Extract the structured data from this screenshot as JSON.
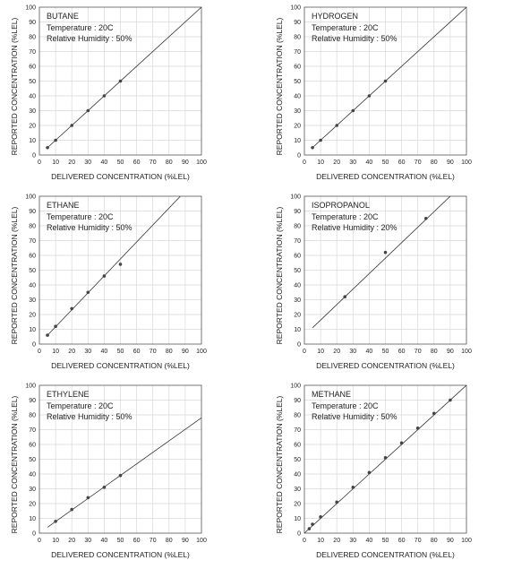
{
  "chart_data": [
    {
      "type": "scatter",
      "title": "BUTANE",
      "annotations": [
        "Temperature : 20C",
        "Relative Humidity : 50%"
      ],
      "xlabel": "DELIVERED CONCENTRATION (%LEL)",
      "ylabel": "REPORTED CONCENTRATION (%LEL)",
      "xlim": [
        0,
        100
      ],
      "ylim": [
        0,
        100
      ],
      "xticks": [
        "0",
        "10",
        "20",
        "30",
        "40",
        "50",
        "60",
        "70",
        "80",
        "90",
        "100"
      ],
      "yticks": [
        "0",
        "10",
        "20",
        "30",
        "40",
        "50",
        "60",
        "70",
        "80",
        "90",
        "100"
      ],
      "grid": true,
      "series": [
        {
          "x": [
            5,
            10,
            20,
            30,
            40,
            50
          ],
          "y": [
            5,
            10,
            20,
            30,
            40,
            50
          ]
        }
      ],
      "line": {
        "x": [
          5,
          100
        ],
        "y": [
          5,
          100
        ]
      }
    },
    {
      "type": "scatter",
      "title": "HYDROGEN",
      "annotations": [
        "Temperature : 20C",
        "Relative Humidity : 50%"
      ],
      "xlabel": "DELIVERED CONCENTRATION (%LEL)",
      "ylabel": "REPORTED CONCENTRATION (%LEL)",
      "xlim": [
        0,
        100
      ],
      "ylim": [
        0,
        100
      ],
      "xticks": [
        "0",
        "10",
        "20",
        "30",
        "40",
        "50",
        "60",
        "70",
        "80",
        "90",
        "100"
      ],
      "yticks": [
        "0",
        "10",
        "20",
        "30",
        "40",
        "50",
        "60",
        "70",
        "80",
        "90",
        "100"
      ],
      "grid": true,
      "series": [
        {
          "x": [
            5,
            10,
            20,
            30,
            40,
            50
          ],
          "y": [
            5,
            10,
            20,
            30,
            40,
            50
          ]
        }
      ],
      "line": {
        "x": [
          5,
          100
        ],
        "y": [
          5,
          100
        ]
      }
    },
    {
      "type": "scatter",
      "title": "ETHANE",
      "annotations": [
        "Temperature : 20C",
        "Relative Humidity : 50%"
      ],
      "xlabel": "DELIVERED CONCENTRATION (%LEL)",
      "ylabel": "REPORTED CONCENTRATION (%LEL)",
      "xlim": [
        0,
        100
      ],
      "ylim": [
        0,
        100
      ],
      "xticks": [
        "0",
        "10",
        "20",
        "30",
        "40",
        "50",
        "60",
        "70",
        "80",
        "90",
        "100"
      ],
      "yticks": [
        "0",
        "10",
        "20",
        "30",
        "40",
        "50",
        "60",
        "70",
        "80",
        "90",
        "100"
      ],
      "grid": true,
      "series": [
        {
          "x": [
            5,
            10,
            20,
            30,
            40,
            50
          ],
          "y": [
            6,
            12,
            24,
            35,
            46,
            54
          ]
        }
      ],
      "line": {
        "x": [
          5,
          87
        ],
        "y": [
          6,
          100
        ]
      }
    },
    {
      "type": "scatter",
      "title": "ISOPROPANOL",
      "annotations": [
        "Temperature : 20C",
        "Relative Humidity : 20%"
      ],
      "xlabel": "DELIVERED CONCENTRATION (%LEL)",
      "ylabel": "REPORTED CONCENTRATION (%LEL)",
      "xlim": [
        0,
        100
      ],
      "ylim": [
        0,
        100
      ],
      "xticks": [
        "0",
        "10",
        "20",
        "30",
        "40",
        "50",
        "60",
        "70",
        "80",
        "90",
        "100"
      ],
      "yticks": [
        "0",
        "10",
        "20",
        "30",
        "40",
        "50",
        "60",
        "70",
        "80",
        "90",
        "100"
      ],
      "grid": true,
      "series": [
        {
          "x": [
            25,
            50,
            75
          ],
          "y": [
            32,
            62,
            85
          ]
        }
      ],
      "line": {
        "x": [
          5,
          90
        ],
        "y": [
          11,
          100
        ]
      }
    },
    {
      "type": "scatter",
      "title": "ETHYLENE",
      "annotations": [
        "Temperature : 20C",
        "Relative Humidity : 50%"
      ],
      "xlabel": "DELIVERED CONCENTRATION (%LEL)",
      "ylabel": "REPORTED CONCENTRATION (%LEL)",
      "xlim": [
        0,
        100
      ],
      "ylim": [
        0,
        100
      ],
      "xticks": [
        "0",
        "10",
        "20",
        "30",
        "40",
        "50",
        "60",
        "70",
        "80",
        "90",
        "100"
      ],
      "yticks": [
        "0",
        "10",
        "20",
        "30",
        "40",
        "50",
        "60",
        "70",
        "80",
        "90",
        "100"
      ],
      "grid": true,
      "series": [
        {
          "x": [
            10,
            20,
            30,
            40,
            50
          ],
          "y": [
            8,
            16,
            24,
            31,
            39
          ]
        }
      ],
      "line": {
        "x": [
          5,
          100
        ],
        "y": [
          4,
          78
        ]
      }
    },
    {
      "type": "scatter",
      "title": "METHANE",
      "annotations": [
        "Temperature : 20C",
        "Relative Humidity : 50%"
      ],
      "xlabel": "DELIVERED CONCENTRATION (%LEL)",
      "ylabel": "REPORTED CONCENTRATION (%LEL)",
      "xlim": [
        0,
        100
      ],
      "ylim": [
        0,
        100
      ],
      "xticks": [
        "0",
        "10",
        "20",
        "30",
        "40",
        "50",
        "60",
        "70",
        "80",
        "90",
        "100"
      ],
      "yticks": [
        "0",
        "10",
        "20",
        "30",
        "40",
        "50",
        "60",
        "70",
        "80",
        "90",
        "100"
      ],
      "grid": true,
      "series": [
        {
          "x": [
            3,
            5,
            10,
            20,
            30,
            40,
            50,
            60,
            70,
            80,
            90
          ],
          "y": [
            3,
            6,
            11,
            21,
            31,
            41,
            51,
            61,
            71,
            81,
            90
          ]
        }
      ],
      "line": {
        "x": [
          0,
          100
        ],
        "y": [
          0,
          100
        ]
      }
    }
  ]
}
